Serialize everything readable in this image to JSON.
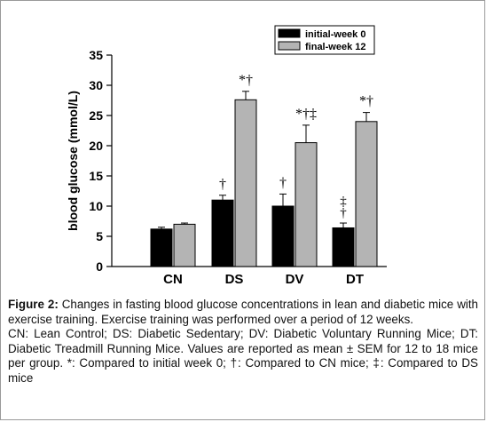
{
  "chart_data": {
    "type": "bar",
    "ylabel": "blood glucose (mmol/L)",
    "xlabel": "",
    "ylim": [
      0,
      35
    ],
    "yticks": [
      0,
      5,
      10,
      15,
      20,
      25,
      30,
      35
    ],
    "categories": [
      "CN",
      "DS",
      "DV",
      "DT"
    ],
    "series": [
      {
        "name": "initial-week 0",
        "color": "#000000",
        "values": [
          6.2,
          11.0,
          10.0,
          6.4
        ],
        "errors": [
          0.3,
          0.8,
          2.0,
          0.8
        ]
      },
      {
        "name": "final-week 12",
        "color": "#b4b4b4",
        "values": [
          7.0,
          27.6,
          20.5,
          24.0
        ],
        "errors": [
          0.2,
          1.4,
          2.9,
          1.5
        ]
      }
    ],
    "annotations": [
      {
        "category": "DS",
        "series": 0,
        "text": "†"
      },
      {
        "category": "DS",
        "series": 1,
        "text": "*†"
      },
      {
        "category": "DV",
        "series": 0,
        "text": "†"
      },
      {
        "category": "DV",
        "series": 1,
        "text": "*†‡"
      },
      {
        "category": "DT",
        "series": 0,
        "text": "‡†"
      },
      {
        "category": "DT",
        "series": 1,
        "text": "*†"
      }
    ],
    "legend_position": "top-right",
    "grid": false
  },
  "caption": {
    "label": "Figure 2:",
    "text": " Changes in fasting blood glucose concentrations in lean and diabetic mice with exercise training. Exercise training was performed over a period of 12 weeks.",
    "abbrev": "CN: Lean Control; DS: Diabetic Sedentary; DV: Diabetic Voluntary Running Mice; DT: Diabetic Treadmill Running Mice. Values are reported as mean ± SEM for 12 to 18 mice per group. *: Compared to initial week 0; †: Compared to CN mice; ‡: Compared to DS mice"
  }
}
